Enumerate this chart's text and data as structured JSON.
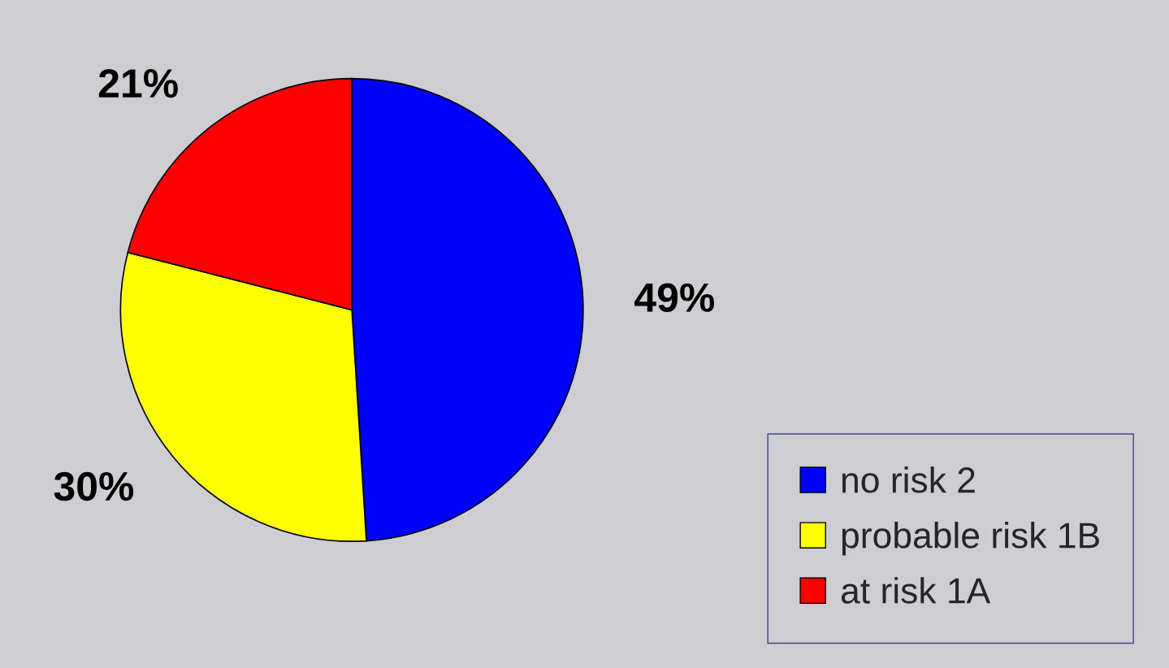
{
  "chart_data": {
    "type": "pie",
    "categories": [
      "no risk 2",
      "probable risk 1B",
      "at risk 1A"
    ],
    "values": [
      49,
      30,
      21
    ],
    "value_labels": [
      "49%",
      "30%",
      "21%"
    ],
    "colors": [
      "#0000ff",
      "#ffff00",
      "#ff0000"
    ],
    "legend": "bottom right"
  }
}
